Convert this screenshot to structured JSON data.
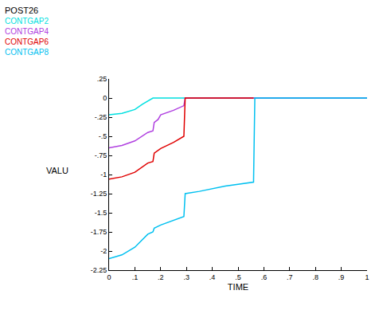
{
  "chart_data": {
    "type": "line",
    "title": "POST26",
    "x_label": "TIME",
    "y_label": "VALU",
    "xlim": [
      0,
      1
    ],
    "ylim": [
      -2.25,
      0.25
    ],
    "xticks": [
      0,
      {
        "value": 0.1,
        "label": ".1"
      },
      {
        "value": 0.2,
        "label": ".2"
      },
      {
        "value": 0.3,
        "label": ".3"
      },
      {
        "value": 0.4,
        "label": ".4"
      },
      {
        "value": 0.5,
        "label": ".5"
      },
      {
        "value": 0.6,
        "label": ".6"
      },
      {
        "value": 0.7,
        "label": ".7"
      },
      {
        "value": 0.8,
        "label": ".8"
      },
      {
        "value": 0.9,
        "label": ".9"
      },
      1
    ],
    "yticks": [
      {
        "value": 0.25,
        "label": ".25"
      },
      0,
      {
        "value": -0.25,
        "label": "-.25"
      },
      {
        "value": -0.5,
        "label": "-.5"
      },
      {
        "value": -0.75,
        "label": "-.75"
      },
      -1,
      -1.25,
      -1.5,
      -1.75,
      -2,
      -2.25
    ],
    "grid": false,
    "legend": "top left",
    "series": [
      {
        "name": "CONTGAP2",
        "color": "#00e0e0",
        "x": [
          0,
          0.05,
          0.1,
          0.13,
          0.17,
          1
        ],
        "values": [
          -0.22,
          -0.2,
          -0.15,
          -0.08,
          0,
          0
        ]
      },
      {
        "name": "CONTGAP4",
        "color": "#b040e0",
        "x": [
          0,
          0.05,
          0.1,
          0.15,
          0.17,
          0.175,
          0.19,
          0.2,
          0.25,
          0.29,
          0.295,
          1
        ],
        "values": [
          -0.65,
          -0.62,
          -0.56,
          -0.45,
          -0.43,
          -0.32,
          -0.28,
          -0.22,
          -0.16,
          -0.1,
          0,
          0
        ]
      },
      {
        "name": "CONTGAP6",
        "color": "#e00000",
        "x": [
          0,
          0.05,
          0.1,
          0.15,
          0.17,
          0.175,
          0.2,
          0.25,
          0.29,
          0.295,
          0.56
        ],
        "values": [
          -1.06,
          -1.03,
          -0.97,
          -0.85,
          -0.83,
          -0.72,
          -0.66,
          -0.58,
          -0.5,
          0,
          0
        ]
      },
      {
        "name": "CONTGAP8",
        "color": "#00c0f0",
        "x": [
          0,
          0.05,
          0.1,
          0.15,
          0.17,
          0.175,
          0.2,
          0.25,
          0.29,
          0.295,
          0.35,
          0.45,
          0.56,
          0.565,
          1
        ],
        "values": [
          -2.1,
          -2.05,
          -1.95,
          -1.78,
          -1.75,
          -1.7,
          -1.66,
          -1.6,
          -1.55,
          -1.25,
          -1.22,
          -1.15,
          -1.1,
          0,
          0
        ]
      }
    ]
  }
}
